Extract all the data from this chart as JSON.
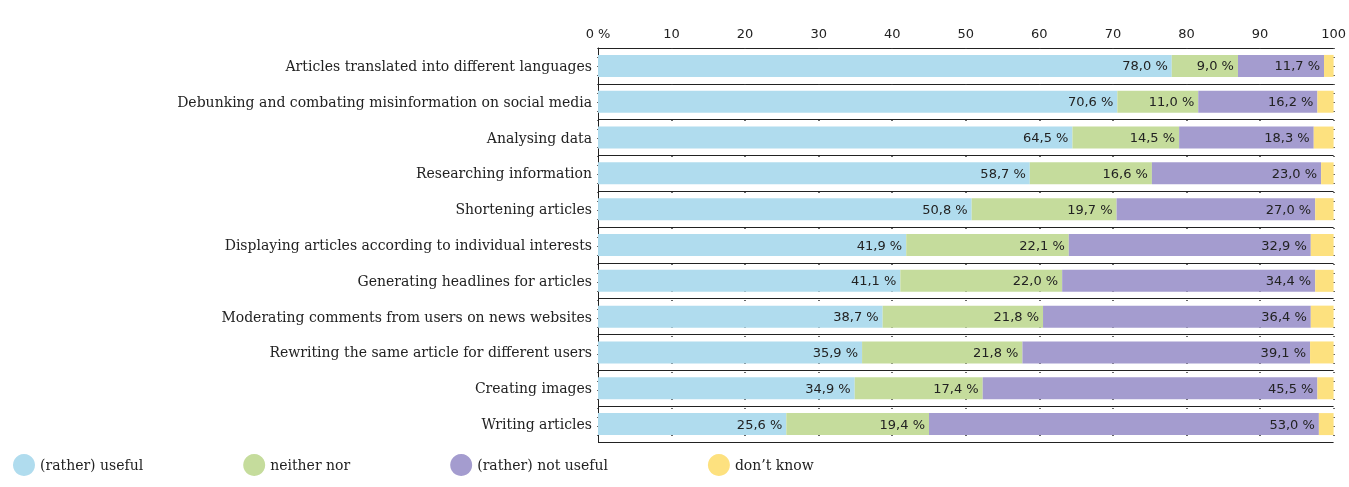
{
  "chart_data": {
    "type": "bar",
    "orientation": "horizontal",
    "stacked": true,
    "categories": [
      "Articles translated into different languages",
      "Debunking and combating misinformation on social media",
      "Analysing data",
      "Researching information",
      "Shortening articles",
      "Displaying articles according to individual interests",
      "Generating headlines for articles",
      "Moderating comments from users on news websites",
      "Rewriting the same article for different users",
      "Creating images",
      "Writing articles"
    ],
    "series": [
      {
        "name": "(rather) useful",
        "color": "#b0dcee",
        "values": [
          78.0,
          70.6,
          64.5,
          58.7,
          50.8,
          41.9,
          41.1,
          38.7,
          35.9,
          34.9,
          25.6
        ],
        "value_labels": [
          "78,0 %",
          "70,6 %",
          "64,5 %",
          "58,7 %",
          "50,8 %",
          "41,9 %",
          "41,1 %",
          "38,7 %",
          "35,9 %",
          "34,9 %",
          "25,6 %"
        ]
      },
      {
        "name": "neither nor",
        "color": "#c5dc9c",
        "values": [
          9.0,
          11.0,
          14.5,
          16.6,
          19.7,
          22.1,
          22.0,
          21.8,
          21.8,
          17.4,
          19.4
        ],
        "value_labels": [
          "9,0 %",
          "11,0 %",
          "14,5 %",
          "16,6 %",
          "19,7 %",
          "22,1 %",
          "22,0 %",
          "21,8 %",
          "21,8 %",
          "17,4 %",
          "19,4 %"
        ]
      },
      {
        "name": "(rather) not useful",
        "color": "#a49ccf",
        "values": [
          11.7,
          16.2,
          18.3,
          23.0,
          27.0,
          32.9,
          34.4,
          36.4,
          39.1,
          45.5,
          53.0
        ],
        "value_labels": [
          "11,7 %",
          "16,2 %",
          "18,3 %",
          "23,0 %",
          "27,0 %",
          "32,9 %",
          "34,4 %",
          "36,4 %",
          "39,1 %",
          "45,5 %",
          "53,0 %"
        ]
      },
      {
        "name": "don’t know",
        "color": "#fde17f",
        "values": [
          1.3,
          2.2,
          2.7,
          1.7,
          2.5,
          3.1,
          2.5,
          3.1,
          3.2,
          2.2,
          2.0
        ],
        "value_labels": [
          null,
          null,
          null,
          null,
          null,
          null,
          null,
          null,
          null,
          null,
          null
        ]
      }
    ],
    "xlim": [
      0,
      100
    ],
    "xticks": [
      {
        "value": 0,
        "label": "0 %"
      },
      10,
      20,
      30,
      40,
      50,
      60,
      70,
      80,
      90,
      100
    ],
    "grid": "x",
    "legend": "bottom left"
  }
}
